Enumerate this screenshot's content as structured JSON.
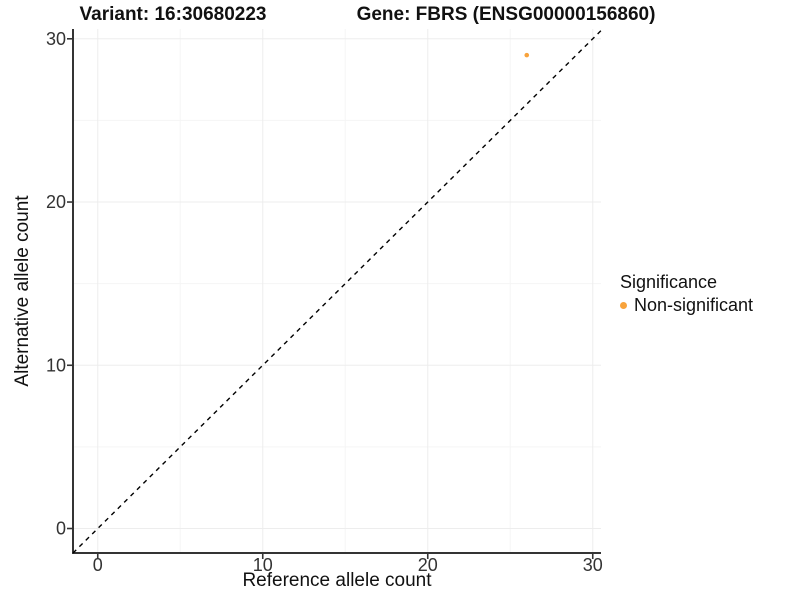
{
  "chart_data": {
    "type": "scatter",
    "titles": {
      "variant": "Variant: 16:30680223",
      "gene": "Gene: FBRS (ENSG00000156860)"
    },
    "xlabel": "Reference allele count",
    "ylabel": "Alternative allele count",
    "xlim": [
      -1.5,
      30.5
    ],
    "ylim": [
      -1.5,
      30.6
    ],
    "x_ticks": [
      0,
      10,
      20,
      30
    ],
    "y_ticks": [
      0,
      10,
      20,
      30
    ],
    "x_minor_ticks": [
      5,
      15,
      25
    ],
    "y_minor_ticks": [
      5,
      15,
      25
    ],
    "grid": "on",
    "identity_line": {
      "slope": 1,
      "intercept": 0,
      "style": "dashed",
      "color": "#000000"
    },
    "points": [
      {
        "x": 26,
        "y": 29,
        "series": "Non-significant"
      }
    ],
    "legend": {
      "title": "Significance",
      "position": "right",
      "items": [
        {
          "label": "Non-significant",
          "color": "#F8A33C"
        }
      ]
    },
    "colors": {
      "axis_line": "#343434",
      "tick_mark": "#343434",
      "tick_text": "#333333",
      "grid_major": "#EDEDED",
      "grid_minor": "#F5F5F5",
      "background": "#FFFFFF"
    }
  }
}
